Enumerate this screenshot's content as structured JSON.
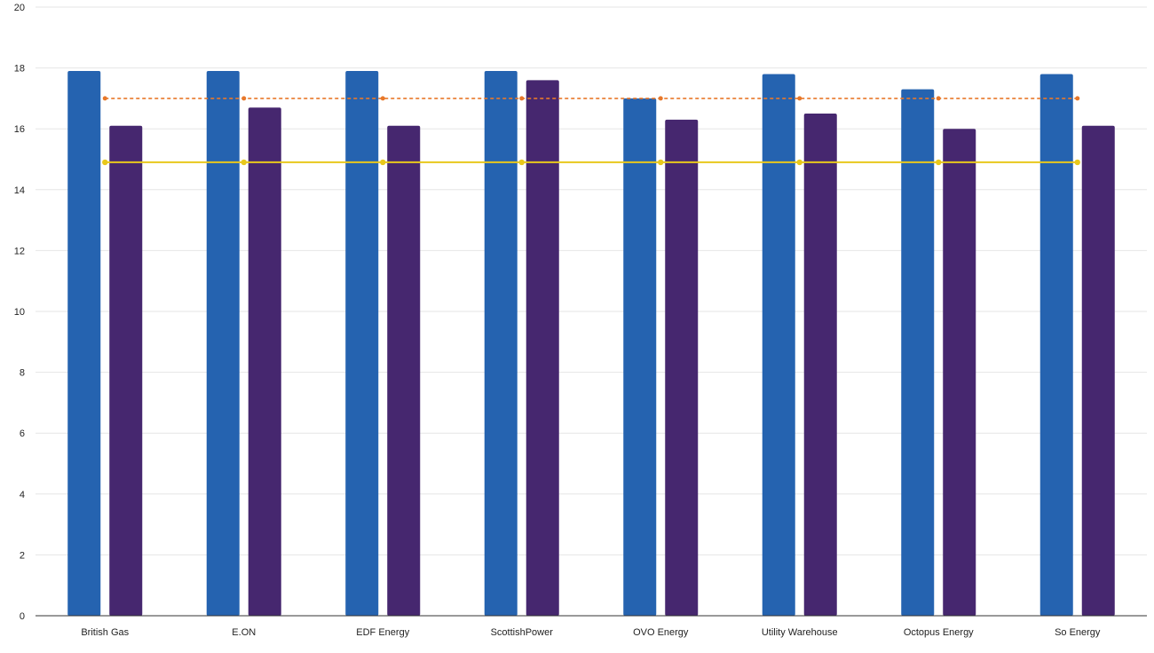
{
  "chart_data": {
    "type": "bar",
    "categories": [
      "British Gas",
      "E.ON",
      "EDF Energy",
      "ScottishPower",
      "OVO Energy",
      "Utility Warehouse",
      "Octopus Energy",
      "So Energy"
    ],
    "series": [
      {
        "kind": "bar",
        "color": "#2563b0",
        "values": [
          17.9,
          17.9,
          17.9,
          17.9,
          17.0,
          17.8,
          17.3,
          17.8
        ]
      },
      {
        "kind": "bar",
        "color": "#46276f",
        "values": [
          16.1,
          16.7,
          16.1,
          17.6,
          16.3,
          16.5,
          16.0,
          16.1
        ]
      },
      {
        "kind": "line",
        "style": "dashed",
        "color": "#e8782a",
        "values": [
          17,
          17,
          17,
          17,
          17,
          17,
          17,
          17
        ]
      },
      {
        "kind": "line",
        "style": "solid",
        "color": "#e8c81c",
        "values": [
          14.9,
          14.9,
          14.9,
          14.9,
          14.9,
          14.9,
          14.9,
          14.9
        ]
      }
    ],
    "yticks": [
      0,
      2,
      4,
      6,
      8,
      10,
      12,
      14,
      16,
      18,
      20
    ],
    "ylim": [
      0,
      20
    ],
    "grid": true,
    "title": "",
    "xlabel": "",
    "ylabel": ""
  }
}
